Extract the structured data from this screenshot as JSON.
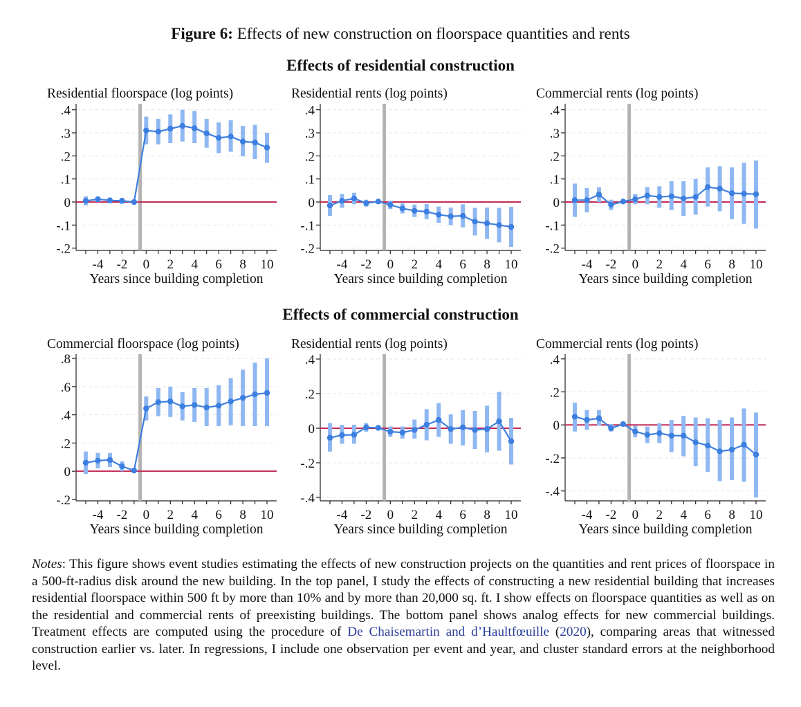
{
  "figure": {
    "label": "Figure 6:",
    "title": "Effects of new construction on floorspace quantities and rents"
  },
  "sections": [
    {
      "title": "Effects of residential construction"
    },
    {
      "title": "Effects of commercial construction"
    }
  ],
  "colors": {
    "point": "#3d7fe0",
    "ci": "#8fb8f2",
    "zero_line": "#c22b55",
    "event_line": "#b3b3b3",
    "grid": "#e6e6e6",
    "link": "#2a3c9a"
  },
  "chart_data": [
    {
      "type": "line",
      "title": "Residential floorspace (log points)",
      "xlabel": "Years since building completion",
      "x": [
        -5,
        -4,
        -3,
        -2,
        -1,
        0,
        1,
        2,
        3,
        4,
        5,
        6,
        7,
        8,
        9,
        10
      ],
      "series": [
        {
          "values": [
            0.005,
            0.012,
            0.007,
            0.005,
            0.0,
            0.31,
            0.305,
            0.318,
            0.33,
            0.32,
            0.298,
            0.278,
            0.284,
            0.262,
            0.258,
            0.236
          ],
          "ci_low": [
            -0.015,
            0.0,
            -0.005,
            -0.008,
            -0.005,
            0.25,
            0.25,
            0.255,
            0.262,
            0.255,
            0.235,
            0.212,
            0.218,
            0.198,
            0.186,
            0.17
          ],
          "ci_high": [
            0.025,
            0.024,
            0.019,
            0.018,
            0.005,
            0.37,
            0.36,
            0.38,
            0.4,
            0.395,
            0.36,
            0.345,
            0.355,
            0.33,
            0.335,
            0.3
          ]
        }
      ],
      "xlim": [
        -5.8,
        10.8
      ],
      "ylim": [
        -0.21,
        0.42
      ],
      "xticks": [
        -4,
        -2,
        0,
        2,
        4,
        6,
        8,
        10
      ],
      "yticks": [
        -0.2,
        -0.1,
        0,
        0.1,
        0.2,
        0.3,
        0.4
      ],
      "ytick_labels": [
        "-.2",
        "-.1",
        "0",
        ".1",
        ".2",
        ".3",
        ".4"
      ],
      "event_line": -0.5
    },
    {
      "type": "line",
      "title": "Residential rents (log points)",
      "xlabel": "Years since building completion",
      "x": [
        -5,
        -4,
        -3,
        -2,
        -1,
        0,
        1,
        2,
        3,
        4,
        5,
        6,
        7,
        8,
        9,
        10
      ],
      "series": [
        {
          "values": [
            -0.015,
            0.005,
            0.015,
            -0.005,
            0.002,
            -0.012,
            -0.028,
            -0.038,
            -0.042,
            -0.055,
            -0.062,
            -0.06,
            -0.085,
            -0.092,
            -0.1,
            -0.108
          ],
          "ci_low": [
            -0.06,
            -0.025,
            -0.01,
            -0.02,
            -0.005,
            -0.03,
            -0.05,
            -0.065,
            -0.075,
            -0.09,
            -0.1,
            -0.11,
            -0.145,
            -0.16,
            -0.175,
            -0.195
          ],
          "ci_high": [
            0.03,
            0.035,
            0.04,
            0.01,
            0.009,
            0.006,
            -0.006,
            -0.011,
            -0.009,
            -0.02,
            -0.024,
            -0.01,
            -0.025,
            -0.024,
            -0.025,
            -0.021
          ]
        }
      ],
      "xlim": [
        -5.8,
        10.8
      ],
      "ylim": [
        -0.21,
        0.42
      ],
      "xticks": [
        -4,
        -2,
        0,
        2,
        4,
        6,
        8,
        10
      ],
      "yticks": [
        -0.2,
        -0.1,
        0,
        0.1,
        0.2,
        0.3,
        0.4
      ],
      "ytick_labels": [
        "-.2",
        "-.1",
        "0",
        ".1",
        ".2",
        ".3",
        ".4"
      ],
      "event_line": -0.5
    },
    {
      "type": "line",
      "title": "Commercial rents (log points)",
      "xlabel": "Years since building completion",
      "x": [
        -5,
        -4,
        -3,
        -2,
        -1,
        0,
        1,
        2,
        3,
        4,
        5,
        6,
        7,
        8,
        9,
        10
      ],
      "series": [
        {
          "values": [
            0.008,
            0.008,
            0.032,
            -0.012,
            0.002,
            0.012,
            0.028,
            0.022,
            0.025,
            0.015,
            0.022,
            0.065,
            0.058,
            0.038,
            0.036,
            0.034
          ],
          "ci_low": [
            -0.065,
            -0.045,
            0.0,
            -0.035,
            -0.005,
            -0.01,
            -0.01,
            -0.025,
            -0.035,
            -0.06,
            -0.055,
            -0.02,
            -0.04,
            -0.075,
            -0.095,
            -0.115
          ],
          "ci_high": [
            0.08,
            0.06,
            0.064,
            0.01,
            0.009,
            0.035,
            0.065,
            0.068,
            0.09,
            0.09,
            0.1,
            0.15,
            0.155,
            0.15,
            0.17,
            0.18
          ]
        }
      ],
      "xlim": [
        -5.8,
        10.8
      ],
      "ylim": [
        -0.21,
        0.42
      ],
      "xticks": [
        -4,
        -2,
        0,
        2,
        4,
        6,
        8,
        10
      ],
      "yticks": [
        -0.2,
        -0.1,
        0,
        0.1,
        0.2,
        0.3,
        0.4
      ],
      "ytick_labels": [
        "-.2",
        "-.1",
        "0",
        ".1",
        ".2",
        ".3",
        ".4"
      ],
      "event_line": -0.5
    },
    {
      "type": "line",
      "title": "Commercial floorspace (log points)",
      "xlabel": "Years since building completion",
      "x": [
        -5,
        -4,
        -3,
        -2,
        -1,
        0,
        1,
        2,
        3,
        4,
        5,
        6,
        7,
        8,
        9,
        10
      ],
      "series": [
        {
          "values": [
            0.06,
            0.075,
            0.08,
            0.035,
            0.005,
            0.445,
            0.49,
            0.495,
            0.46,
            0.47,
            0.452,
            0.465,
            0.495,
            0.52,
            0.545,
            0.555
          ],
          "ci_low": [
            -0.02,
            0.02,
            0.03,
            0.0,
            -0.005,
            0.36,
            0.39,
            0.385,
            0.36,
            0.35,
            0.32,
            0.32,
            0.325,
            0.32,
            0.32,
            0.32
          ],
          "ci_high": [
            0.14,
            0.13,
            0.13,
            0.07,
            0.015,
            0.53,
            0.59,
            0.6,
            0.56,
            0.59,
            0.59,
            0.61,
            0.66,
            0.72,
            0.77,
            0.8
          ]
        }
      ],
      "xlim": [
        -5.8,
        10.8
      ],
      "ylim": [
        -0.21,
        0.82
      ],
      "xticks": [
        -4,
        -2,
        0,
        2,
        4,
        6,
        8,
        10
      ],
      "yticks": [
        -0.2,
        0,
        0.2,
        0.4,
        0.6,
        0.8
      ],
      "ytick_labels": [
        "-.2",
        "0",
        ".2",
        ".4",
        ".6",
        ".8"
      ],
      "event_line": -0.5
    },
    {
      "type": "line",
      "title": "Residential rents (log points)",
      "xlabel": "Years since building completion",
      "x": [
        -5,
        -4,
        -3,
        -2,
        -1,
        0,
        1,
        2,
        3,
        4,
        5,
        6,
        7,
        8,
        9,
        10
      ],
      "series": [
        {
          "values": [
            -0.055,
            -0.04,
            -0.038,
            0.005,
            0.002,
            -0.02,
            -0.025,
            -0.01,
            0.02,
            0.048,
            -0.005,
            0.005,
            -0.01,
            -0.005,
            0.04,
            -0.075
          ],
          "ci_low": [
            -0.135,
            -0.09,
            -0.09,
            -0.02,
            -0.005,
            -0.05,
            -0.06,
            -0.06,
            -0.07,
            -0.05,
            -0.09,
            -0.1,
            -0.12,
            -0.14,
            -0.13,
            -0.21
          ],
          "ci_high": [
            0.03,
            0.02,
            0.02,
            0.03,
            0.009,
            0.01,
            0.01,
            0.05,
            0.11,
            0.145,
            0.08,
            0.105,
            0.1,
            0.13,
            0.21,
            0.06
          ]
        }
      ],
      "xlim": [
        -5.8,
        10.8
      ],
      "ylim": [
        -0.42,
        0.42
      ],
      "xticks": [
        -4,
        -2,
        0,
        2,
        4,
        6,
        8,
        10
      ],
      "yticks": [
        -0.4,
        -0.2,
        0,
        0.2,
        0.4
      ],
      "ytick_labels": [
        "-.4",
        "-.2",
        "0",
        ".2",
        ".4"
      ],
      "event_line": -0.5
    },
    {
      "type": "line",
      "title": "Commercial rents (log points)",
      "xlabel": "Years since building completion",
      "x": [
        -5,
        -4,
        -3,
        -2,
        -1,
        0,
        1,
        2,
        3,
        4,
        5,
        6,
        7,
        8,
        9,
        10
      ],
      "series": [
        {
          "values": [
            0.05,
            0.03,
            0.04,
            -0.02,
            0.005,
            -0.04,
            -0.06,
            -0.05,
            -0.065,
            -0.065,
            -0.105,
            -0.125,
            -0.16,
            -0.15,
            -0.12,
            -0.18
          ],
          "ci_low": [
            -0.04,
            -0.03,
            -0.005,
            -0.04,
            -0.005,
            -0.075,
            -0.11,
            -0.11,
            -0.165,
            -0.19,
            -0.25,
            -0.285,
            -0.34,
            -0.335,
            -0.345,
            -0.44
          ],
          "ci_high": [
            0.135,
            0.09,
            0.09,
            0.005,
            0.015,
            -0.005,
            -0.01,
            0.01,
            0.03,
            0.055,
            0.045,
            0.04,
            0.03,
            0.045,
            0.1,
            0.075
          ]
        }
      ],
      "xlim": [
        -5.8,
        10.8
      ],
      "ylim": [
        -0.46,
        0.42
      ],
      "xticks": [
        -4,
        -2,
        0,
        2,
        4,
        6,
        8,
        10
      ],
      "yticks": [
        -0.4,
        -0.2,
        0,
        0.2,
        0.4
      ],
      "ytick_labels": [
        "-.4",
        "-.2",
        "0",
        ".2",
        ".4"
      ],
      "event_line": -0.5
    }
  ],
  "notes": {
    "label": "Notes",
    "text_before": ": This figure shows event studies estimating the effects of new construction projects on the quantities and rent prices of floorspace in a 500-ft-radius disk around the new building. In the top panel, I study the effects of constructing a new residential building that increases residential floorspace within 500 ft by more than 10% and by more than 20,000 sq. ft. I show effects on floorspace quantities as well as on the residential and commercial rents of preexisting buildings. The bottom panel shows analog effects for new commercial buildings. Treatment effects are computed using the procedure of ",
    "citation_authors": "De Chaisemartin and d’Haultfœuille",
    "citation_open": " (",
    "citation_year": "2020",
    "text_after": "), comparing areas that witnessed construction earlier vs. later. In regressions, I include one observation per event and year, and cluster standard errors at the neighborhood level."
  }
}
